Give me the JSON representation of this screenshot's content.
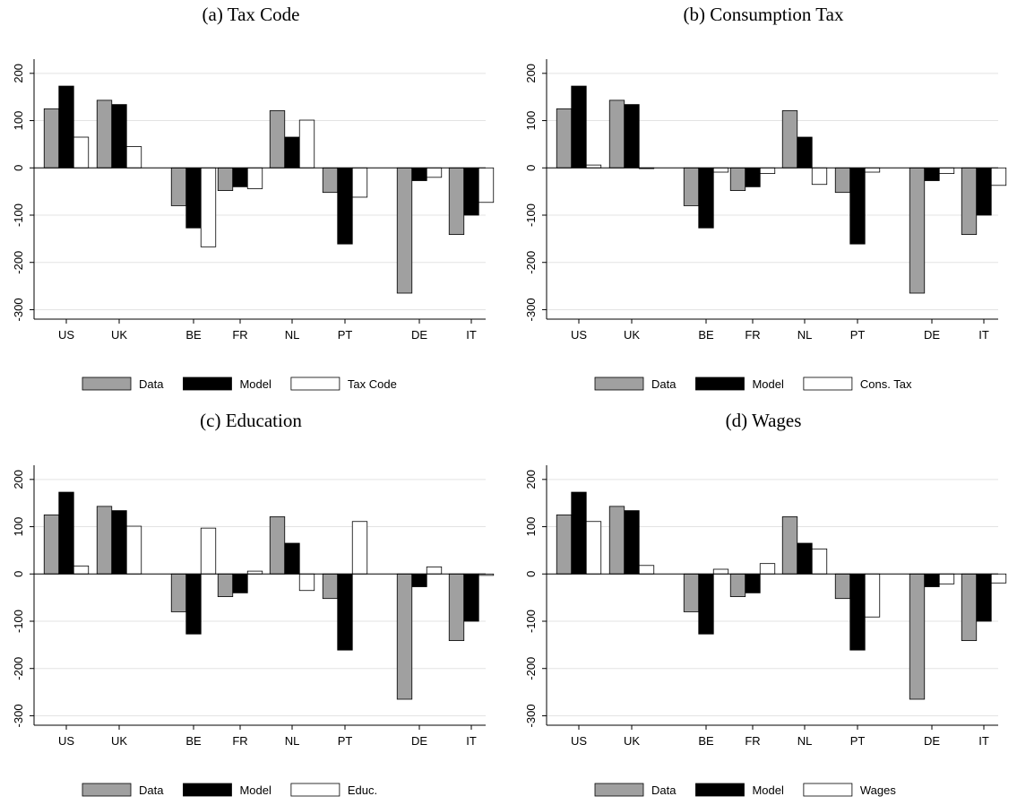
{
  "chart_data": [
    {
      "type": "bar",
      "title": "(a) Tax Code",
      "categories": [
        "US",
        "UK",
        "BE",
        "FR",
        "NL",
        "PT",
        "DE",
        "IT"
      ],
      "ylim": [
        -320,
        230
      ],
      "yticks": [
        200,
        100,
        0,
        -100,
        -200,
        -300
      ],
      "grid": true,
      "legend_position": "bottom",
      "series": [
        {
          "name": "Data",
          "color": "#a0a0a0",
          "values": [
            125,
            143,
            -80,
            -48,
            121,
            -52,
            -265,
            -141
          ]
        },
        {
          "name": "Model",
          "color": "#000000",
          "values": [
            173,
            134,
            -127,
            -40,
            65,
            -161,
            -27,
            -100
          ]
        },
        {
          "name": "Tax Code",
          "color": "#ffffff",
          "values": [
            65,
            45,
            -167,
            -44,
            101,
            -62,
            -20,
            -73
          ]
        }
      ]
    },
    {
      "type": "bar",
      "title": "(b) Consumption Tax",
      "categories": [
        "US",
        "UK",
        "BE",
        "FR",
        "NL",
        "PT",
        "DE",
        "IT"
      ],
      "ylim": [
        -320,
        230
      ],
      "yticks": [
        200,
        100,
        0,
        -100,
        -200,
        -300
      ],
      "grid": true,
      "legend_position": "bottom",
      "series": [
        {
          "name": "Data",
          "color": "#a0a0a0",
          "values": [
            125,
            143,
            -80,
            -48,
            121,
            -52,
            -265,
            -141
          ]
        },
        {
          "name": "Model",
          "color": "#000000",
          "values": [
            173,
            134,
            -127,
            -40,
            65,
            -161,
            -27,
            -100
          ]
        },
        {
          "name": "Cons. Tax",
          "color": "#ffffff",
          "values": [
            6,
            0,
            -9,
            -12,
            -35,
            -9,
            -12,
            -37
          ]
        }
      ]
    },
    {
      "type": "bar",
      "title": "(c) Education",
      "categories": [
        "US",
        "UK",
        "BE",
        "FR",
        "NL",
        "PT",
        "DE",
        "IT"
      ],
      "ylim": [
        -320,
        230
      ],
      "yticks": [
        200,
        100,
        0,
        -100,
        -200,
        -300
      ],
      "grid": true,
      "legend_position": "bottom",
      "series": [
        {
          "name": "Data",
          "color": "#a0a0a0",
          "values": [
            125,
            143,
            -80,
            -48,
            121,
            -52,
            -265,
            -141
          ]
        },
        {
          "name": "Model",
          "color": "#000000",
          "values": [
            173,
            134,
            -127,
            -40,
            65,
            -161,
            -27,
            -100
          ]
        },
        {
          "name": "Educ.",
          "color": "#ffffff",
          "values": [
            17,
            101,
            97,
            6,
            -35,
            111,
            15,
            -3
          ]
        }
      ]
    },
    {
      "type": "bar",
      "title": "(d) Wages",
      "categories": [
        "US",
        "UK",
        "BE",
        "FR",
        "NL",
        "PT",
        "DE",
        "IT"
      ],
      "ylim": [
        -320,
        230
      ],
      "yticks": [
        200,
        100,
        0,
        -100,
        -200,
        -300
      ],
      "grid": true,
      "legend_position": "bottom",
      "series": [
        {
          "name": "Data",
          "color": "#a0a0a0",
          "values": [
            125,
            143,
            -80,
            -48,
            121,
            -52,
            -265,
            -141
          ]
        },
        {
          "name": "Model",
          "color": "#000000",
          "values": [
            173,
            134,
            -127,
            -40,
            65,
            -161,
            -27,
            -100
          ]
        },
        {
          "name": "Wages",
          "color": "#ffffff",
          "values": [
            111,
            18,
            10,
            22,
            53,
            -91,
            -21,
            -19
          ]
        }
      ]
    }
  ]
}
